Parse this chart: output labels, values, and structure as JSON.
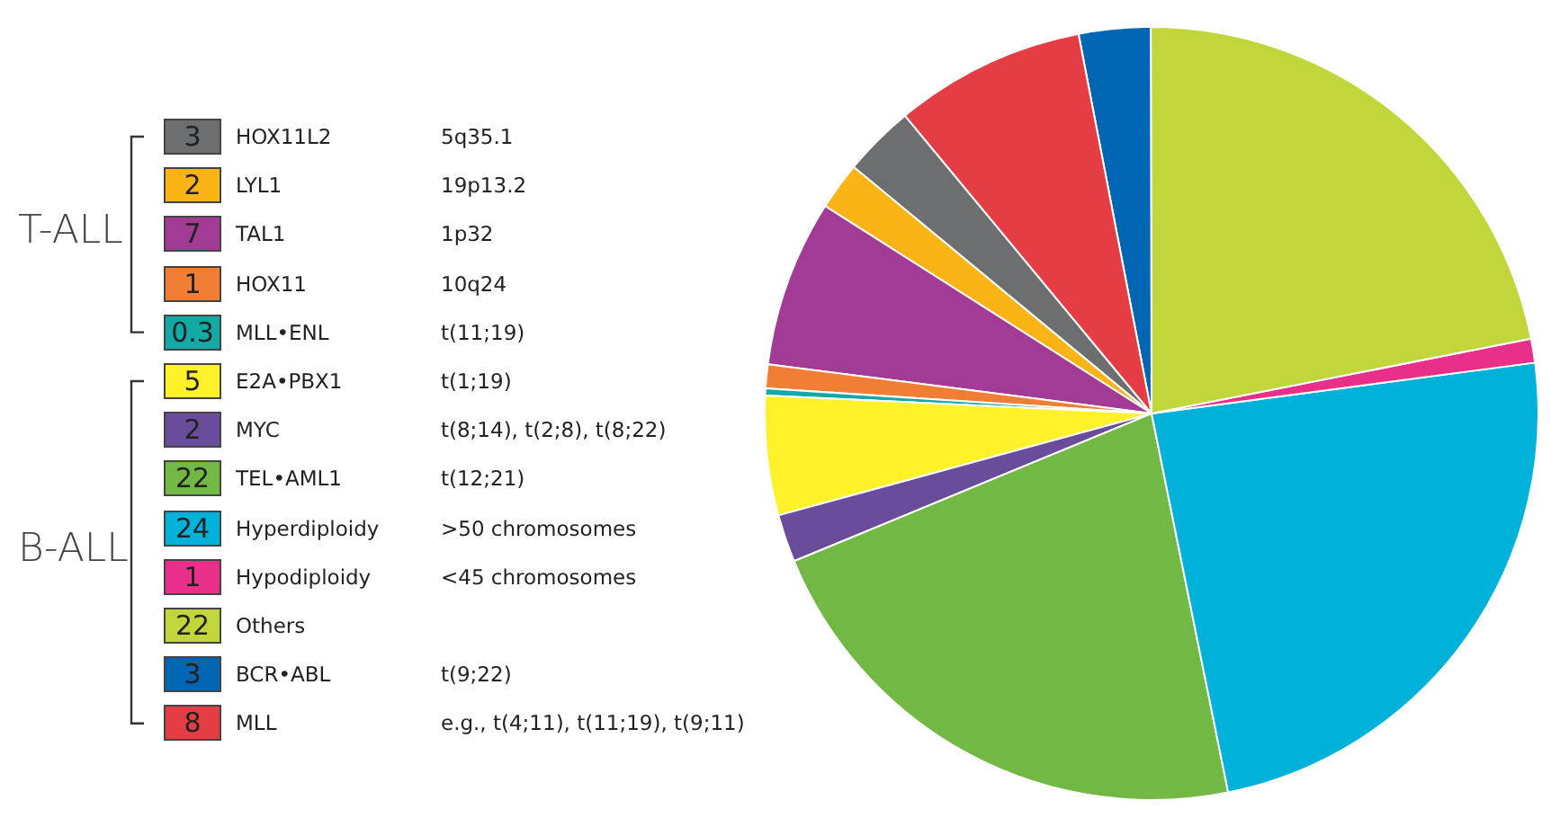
{
  "chart_data": {
    "type": "pie",
    "categories": [
      "HOX11L2",
      "LYL1",
      "TAL1",
      "HOX11",
      "MLL•ENL",
      "E2A•PBX1",
      "MYC",
      "TEL•AML1",
      "Hyperdiploidy",
      "Hypodiploidy",
      "Others",
      "BCR•ABL",
      "MLL"
    ],
    "values": [
      3,
      2,
      7,
      1,
      0.3,
      5,
      2,
      22,
      24,
      1,
      22,
      3,
      8
    ],
    "colors": [
      "#6d6e70",
      "#fbb416",
      "#a23b93",
      "#f07f35",
      "#15a9a6",
      "#fff22b",
      "#6a4c9c",
      "#72b844",
      "#00b1d9",
      "#e8308a",
      "#c0d63b",
      "#0066b3",
      "#e43e44"
    ],
    "annotations": [
      "T-ALL",
      "B-ALL",
      "5q35.1",
      "19p13.2",
      "1p32",
      "10q24",
      "t(11;19)",
      "t(1;19)",
      "t(8;14), t(2;8), t(8;22)",
      "t(12;21)",
      ">50 chromosomes",
      "<45 chromosomes",
      "t(9;22)",
      "e.g., t(4;11), t(11;19), t(9;11)"
    ],
    "data_labels": true,
    "legend": "left"
  }
}
